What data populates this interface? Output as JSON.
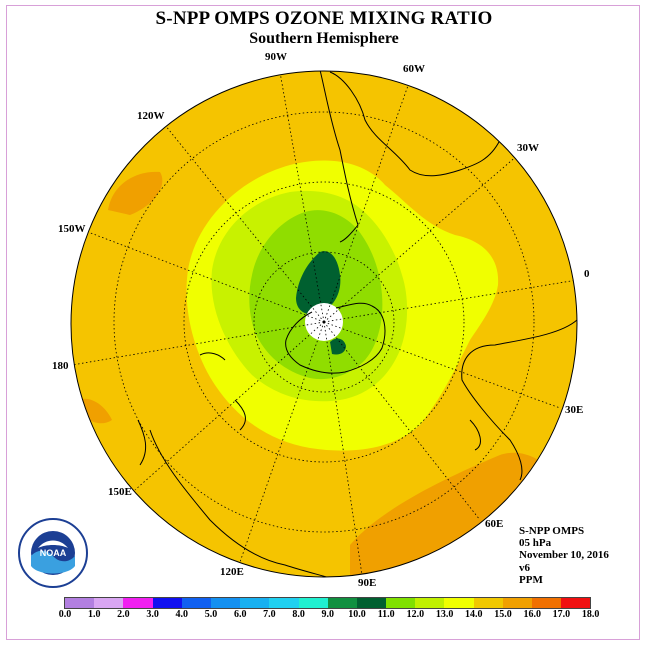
{
  "title": "S-NPP OMPS OZONE MIXING RATIO",
  "subtitle": "Southern Hemisphere",
  "longitude_labels": [
    "90W",
    "60W",
    "30W",
    "0",
    "30E",
    "60E",
    "90E",
    "120E",
    "150E",
    "180",
    "150W",
    "120W"
  ],
  "info": {
    "instrument": "S-NPP OMPS",
    "level": "05 hPa",
    "date": "November 10, 2016",
    "version": "v6",
    "units": "PPM"
  },
  "colorbar": {
    "ticks": [
      "0.0",
      "1.0",
      "2.0",
      "3.0",
      "4.0",
      "5.0",
      "6.0",
      "7.0",
      "8.0",
      "9.0",
      "10.0",
      "11.0",
      "12.0",
      "13.0",
      "14.0",
      "15.0",
      "16.0",
      "17.0",
      "18.0"
    ],
    "colors": [
      "#b27fe0",
      "#d9a6f2",
      "#f020f0",
      "#1010f0",
      "#1060f0",
      "#1490f0",
      "#18b0f0",
      "#20d0f0",
      "#20f0d0",
      "#109040",
      "#006030",
      "#80e000",
      "#c0f000",
      "#f0ff00",
      "#f0c800",
      "#f0a000",
      "#f07000",
      "#f01010",
      "#7a4a2a"
    ]
  },
  "logo_text": "NOAA"
}
